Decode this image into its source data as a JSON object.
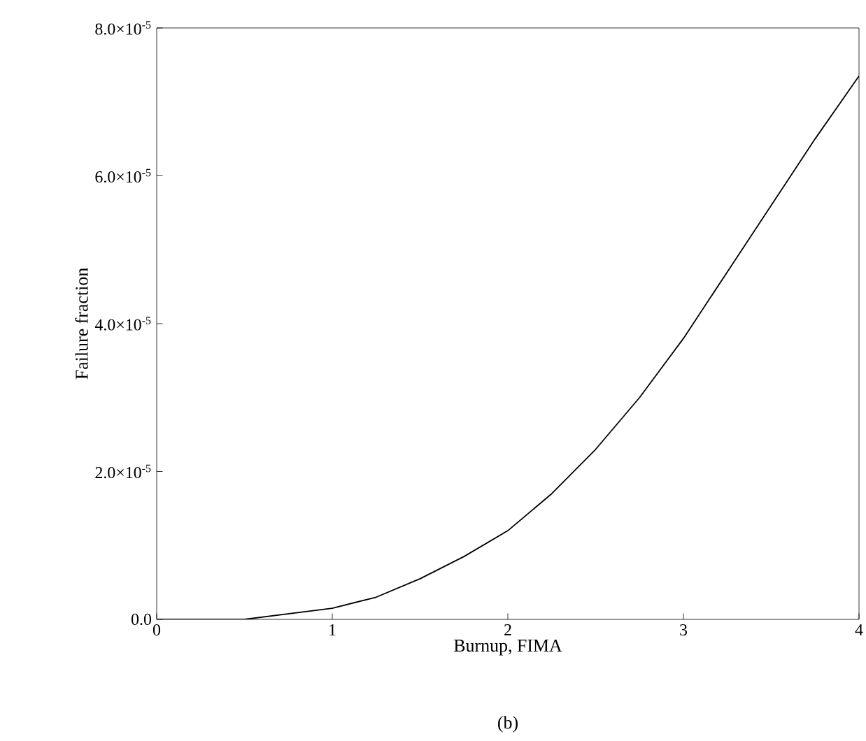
{
  "chart_data": {
    "type": "line",
    "xlabel": "Burnup, FIMA",
    "ylabel": "Failure fraction",
    "annotations": [
      "(b)"
    ],
    "x": [
      0,
      0.5,
      1.0,
      1.25,
      1.5,
      1.75,
      2.0,
      2.25,
      2.5,
      2.75,
      3.0,
      3.25,
      3.5,
      3.75,
      4.0
    ],
    "series": [
      {
        "color": "#000000",
        "values": [
          0,
          0,
          1.5e-06,
          3e-06,
          5.5e-06,
          8.5e-06,
          1.2e-05,
          1.7e-05,
          2.3e-05,
          3e-05,
          3.8e-05,
          4.7e-05,
          5.6e-05,
          6.5e-05,
          7.35e-05
        ]
      }
    ],
    "xlim": [
      0,
      4
    ],
    "ylim": [
      0,
      8e-05
    ],
    "xticks": [
      0,
      1,
      2,
      3,
      4
    ],
    "yticks": [
      {
        "value": 0,
        "label": "0.0"
      },
      {
        "value": 2e-05,
        "label": "2.0×10$^{-5}$"
      },
      {
        "value": 4e-05,
        "label": "4.0×10$^{-5}$"
      },
      {
        "value": 6e-05,
        "label": "6.0×10$^{-5}$"
      },
      {
        "value": 8e-05,
        "label": "8.0×10$^{-5}$"
      }
    ],
    "grid": false,
    "marker": "none",
    "line_style": "solid"
  }
}
